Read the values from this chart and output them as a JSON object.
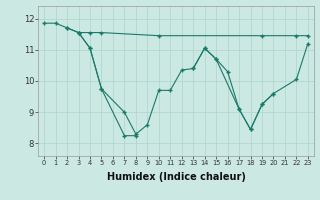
{
  "background_color": "#cce8e2",
  "line_color": "#1a7a6a",
  "grid_color": "#aad4cc",
  "xlabel": "Humidex (Indice chaleur)",
  "yticks": [
    8,
    9,
    10,
    11,
    12
  ],
  "xticks": [
    0,
    1,
    2,
    3,
    4,
    5,
    6,
    7,
    8,
    9,
    10,
    11,
    12,
    13,
    14,
    15,
    16,
    17,
    18,
    19,
    20,
    21,
    22,
    23
  ],
  "xlim": [
    -0.5,
    23.5
  ],
  "ylim": [
    7.6,
    12.4
  ],
  "line1_x": [
    0,
    1,
    2,
    3,
    4,
    5,
    10,
    19,
    22,
    23
  ],
  "line1_y": [
    11.85,
    11.85,
    11.7,
    11.55,
    11.55,
    11.55,
    11.45,
    11.45,
    11.45,
    11.45
  ],
  "line1_markers_x": [
    0,
    1,
    2,
    3,
    4,
    5,
    10,
    19,
    22,
    23
  ],
  "line1_markers_y": [
    11.85,
    11.85,
    11.7,
    11.55,
    11.55,
    11.55,
    11.45,
    11.45,
    11.45,
    11.45
  ],
  "line2_x": [
    2,
    3,
    4,
    5,
    7,
    8
  ],
  "line2_y": [
    11.7,
    11.55,
    11.05,
    9.75,
    8.25,
    8.25
  ],
  "line3_x": [
    3,
    4,
    5,
    7,
    8,
    9,
    10,
    11,
    12,
    13,
    14,
    15,
    16,
    17,
    18,
    19,
    20,
    22,
    23
  ],
  "line3_y": [
    11.55,
    11.05,
    9.75,
    9.0,
    8.3,
    8.6,
    9.7,
    9.7,
    10.35,
    10.4,
    11.05,
    10.7,
    10.3,
    9.1,
    8.45,
    9.25,
    9.6,
    10.05,
    11.2
  ],
  "line4_x": [
    13,
    14,
    15,
    17,
    18,
    19,
    20
  ],
  "line4_y": [
    10.4,
    11.05,
    10.7,
    9.1,
    8.45,
    9.25,
    9.6
  ]
}
